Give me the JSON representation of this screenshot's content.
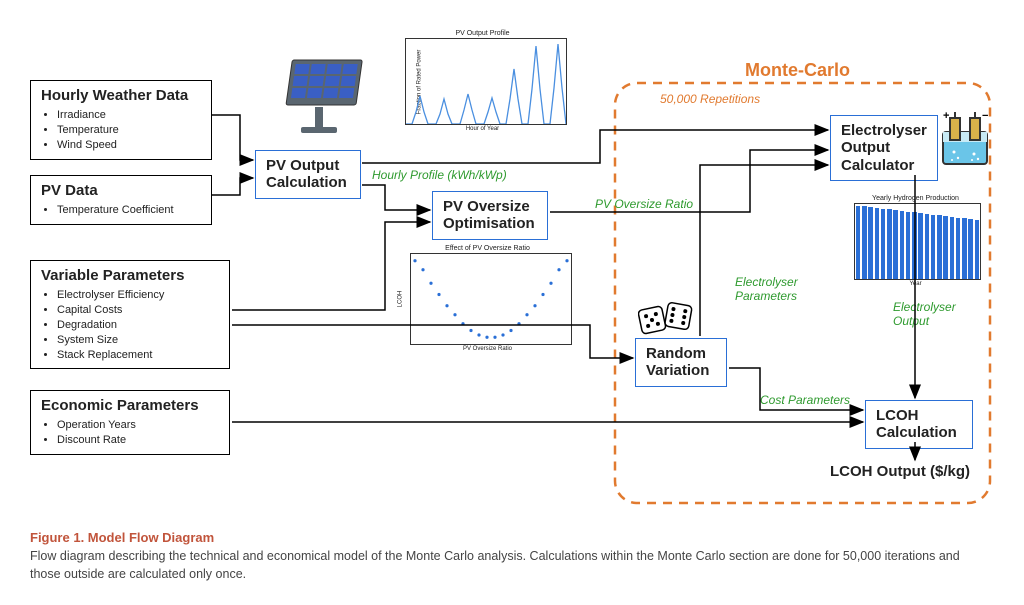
{
  "nodes": {
    "weather": {
      "title": "Hourly Weather Data",
      "bullets": [
        "Irradiance",
        "Temperature",
        "Wind Speed"
      ]
    },
    "pvdata": {
      "title": "PV Data",
      "bullets": [
        "Temperature Coefficient"
      ]
    },
    "varparam": {
      "title": "Variable Parameters",
      "bullets": [
        "Electrolyser Efficiency",
        "Capital Costs",
        "Degradation",
        "System Size",
        "Stack Replacement"
      ]
    },
    "econ": {
      "title": "Economic Parameters",
      "bullets": [
        "Operation Years",
        "Discount Rate"
      ]
    },
    "pvcalc": {
      "title": "PV Output Calculation"
    },
    "oversize": {
      "title": "PV Oversize Optimisation"
    },
    "random": {
      "title": "Random Variation"
    },
    "electro": {
      "title": "Electrolyser Output Calculator"
    },
    "lcoh": {
      "title": "LCOH Calculation"
    }
  },
  "edge_labels": {
    "hourly_profile": "Hourly Profile (kWh/kWp)",
    "pv_oversize": "PV Oversize Ratio",
    "electro_params": "Electrolyser Parameters",
    "electro_output": "Electrolyser Output",
    "cost_params": "Cost Parameters"
  },
  "monte_carlo": {
    "title": "Monte-Carlo",
    "sub": "50,000 Repetitions"
  },
  "lcoh_output": "LCOH Output ($/kg)",
  "caption": {
    "title": "Figure 1. Model Flow Diagram",
    "body": "Flow diagram describing the technical and economical model of the Monte Carlo analysis. Calculations within the Monte Carlo section are done for 50,000 iterations and those outside are calculated only once."
  },
  "charts": {
    "pv_profile": {
      "title": "PV Output Profile",
      "xlabel": "Hour of Year",
      "ylabel": "Fraction of Rated Power",
      "stroke": "#4a8fe0",
      "xmax": 160,
      "ymax": 0.85,
      "points": [
        [
          0,
          0
        ],
        [
          6,
          0
        ],
        [
          10,
          0.12
        ],
        [
          14,
          0.28
        ],
        [
          18,
          0.12
        ],
        [
          22,
          0
        ],
        [
          30,
          0
        ],
        [
          34,
          0.1
        ],
        [
          38,
          0.25
        ],
        [
          42,
          0.1
        ],
        [
          46,
          0
        ],
        [
          54,
          0
        ],
        [
          58,
          0.14
        ],
        [
          62,
          0.3
        ],
        [
          66,
          0.14
        ],
        [
          70,
          0
        ],
        [
          78,
          0
        ],
        [
          82,
          0.12
        ],
        [
          86,
          0.26
        ],
        [
          90,
          0.12
        ],
        [
          94,
          0
        ],
        [
          100,
          0
        ],
        [
          104,
          0.25
        ],
        [
          108,
          0.55
        ],
        [
          112,
          0.25
        ],
        [
          116,
          0
        ],
        [
          122,
          0
        ],
        [
          126,
          0.35
        ],
        [
          130,
          0.78
        ],
        [
          134,
          0.35
        ],
        [
          138,
          0
        ],
        [
          144,
          0
        ],
        [
          148,
          0.36
        ],
        [
          152,
          0.8
        ],
        [
          156,
          0.36
        ],
        [
          160,
          0
        ]
      ]
    },
    "oversize_effect": {
      "title": "Effect of PV Oversize Ratio",
      "xlabel": "PV Oversize Ratio",
      "ylabel": "LCOH",
      "stroke": "#2a6fd6",
      "xmin": 1.1,
      "xmax": 1.9,
      "ymin": 3.75,
      "ymax": 4.15,
      "points": [
        [
          1.12,
          4.12
        ],
        [
          1.16,
          4.08
        ],
        [
          1.2,
          4.02
        ],
        [
          1.24,
          3.97
        ],
        [
          1.28,
          3.92
        ],
        [
          1.32,
          3.88
        ],
        [
          1.36,
          3.84
        ],
        [
          1.4,
          3.81
        ],
        [
          1.44,
          3.79
        ],
        [
          1.48,
          3.78
        ],
        [
          1.52,
          3.78
        ],
        [
          1.56,
          3.79
        ],
        [
          1.6,
          3.81
        ],
        [
          1.64,
          3.84
        ],
        [
          1.68,
          3.88
        ],
        [
          1.72,
          3.92
        ],
        [
          1.76,
          3.97
        ],
        [
          1.8,
          4.02
        ],
        [
          1.84,
          4.08
        ],
        [
          1.88,
          4.12
        ]
      ]
    },
    "h2_production": {
      "title": "Yearly Hydrogen Production",
      "xlabel": "Year",
      "fill": "#2a6fd6",
      "ymax": 100,
      "values": [
        98,
        97,
        96,
        95,
        94,
        93,
        92,
        91,
        90,
        89,
        88,
        87,
        86,
        85,
        84,
        83,
        82,
        81,
        80,
        79
      ]
    }
  },
  "colors": {
    "node_border": "#000000",
    "proc_border": "#2a6fd6",
    "edge_label": "#2e9a2e",
    "mc": "#e17a2f",
    "caption_title": "#c1543b",
    "arrow": "#000000"
  }
}
